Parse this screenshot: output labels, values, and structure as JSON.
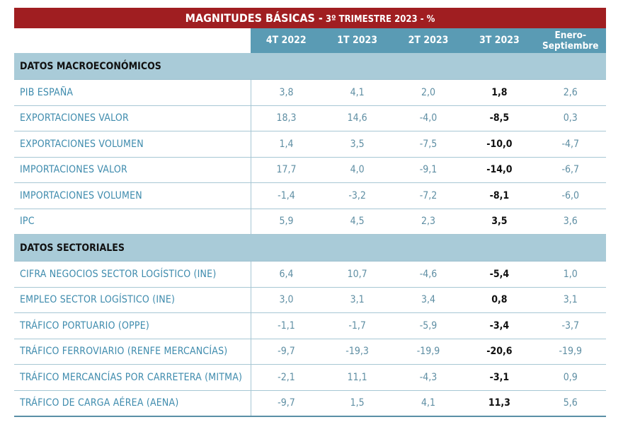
{
  "title": {
    "main": "MAGNITUDES BÁSICAS  -",
    "sub": "3º TRIMESTRE 2023 - %"
  },
  "columns": [
    "4T 2022",
    "1T 2023",
    "2T 2023",
    "3T 2023",
    "Enero-\nSeptiembre"
  ],
  "sections": [
    {
      "heading": "DATOS MACROECONÓMICOS",
      "rows": [
        {
          "label": "PIB ESPAÑA",
          "values": [
            "3,8",
            "4,1",
            "2,0",
            "1,8",
            "2,6"
          ]
        },
        {
          "label": "EXPORTACIONES VALOR",
          "values": [
            "18,3",
            "14,6",
            "-4,0",
            "-8,5",
            "0,3"
          ]
        },
        {
          "label": "EXPORTACIONES VOLUMEN",
          "values": [
            "1,4",
            "3,5",
            "-7,5",
            "-10,0",
            "-4,7"
          ]
        },
        {
          "label": "IMPORTACIONES VALOR",
          "values": [
            "17,7",
            "4,0",
            "-9,1",
            "-14,0",
            "-6,7"
          ]
        },
        {
          "label": "IMPORTACIONES VOLUMEN",
          "values": [
            "-1,4",
            "-3,2",
            "-7,2",
            "-8,1",
            "-6,0"
          ]
        },
        {
          "label": "IPC",
          "values": [
            "5,9",
            "4,5",
            "2,3",
            "3,5",
            "3,6"
          ]
        }
      ]
    },
    {
      "heading": "DATOS SECTORIALES",
      "rows": [
        {
          "label": "CIFRA NEGOCIOS SECTOR LOGÍSTICO (INE)",
          "values": [
            "6,4",
            "10,7",
            "-4,6",
            "-5,4",
            "1,0"
          ]
        },
        {
          "label": "EMPLEO SECTOR LOGÍSTICO (INE)",
          "values": [
            "3,0",
            "3,1",
            "3,4",
            "0,8",
            "3,1"
          ]
        },
        {
          "label": "TRÁFICO PORTUARIO (OPPE)",
          "values": [
            "-1,1",
            "-1,7",
            "-5,9",
            "-3,4",
            "-3,7"
          ]
        },
        {
          "label": "TRÁFICO FERROVIARIO (RENFE MERCANCÍAS)",
          "values": [
            "-9,7",
            "-19,3",
            "-19,9",
            "-20,6",
            "-19,9"
          ]
        },
        {
          "label": "TRÁFICO MERCANCÍAS POR CARRETERA (MITMA)",
          "values": [
            "-2,1",
            "11,1",
            "-4,3",
            "-3,1",
            "0,9"
          ]
        },
        {
          "label": "TRÁFICO DE CARGA AÉREA (AENA)",
          "values": [
            "-9,7",
            "1,5",
            "4,1",
            "11,3",
            "5,6"
          ]
        }
      ]
    }
  ],
  "highlight_column": 3,
  "colors": {
    "title_bg": "#a01e21",
    "header_bg": "#5a9bb4",
    "section_bg": "#a9cbd8",
    "label_text": "#3e8bad",
    "value_text": "#5e8ea3"
  }
}
